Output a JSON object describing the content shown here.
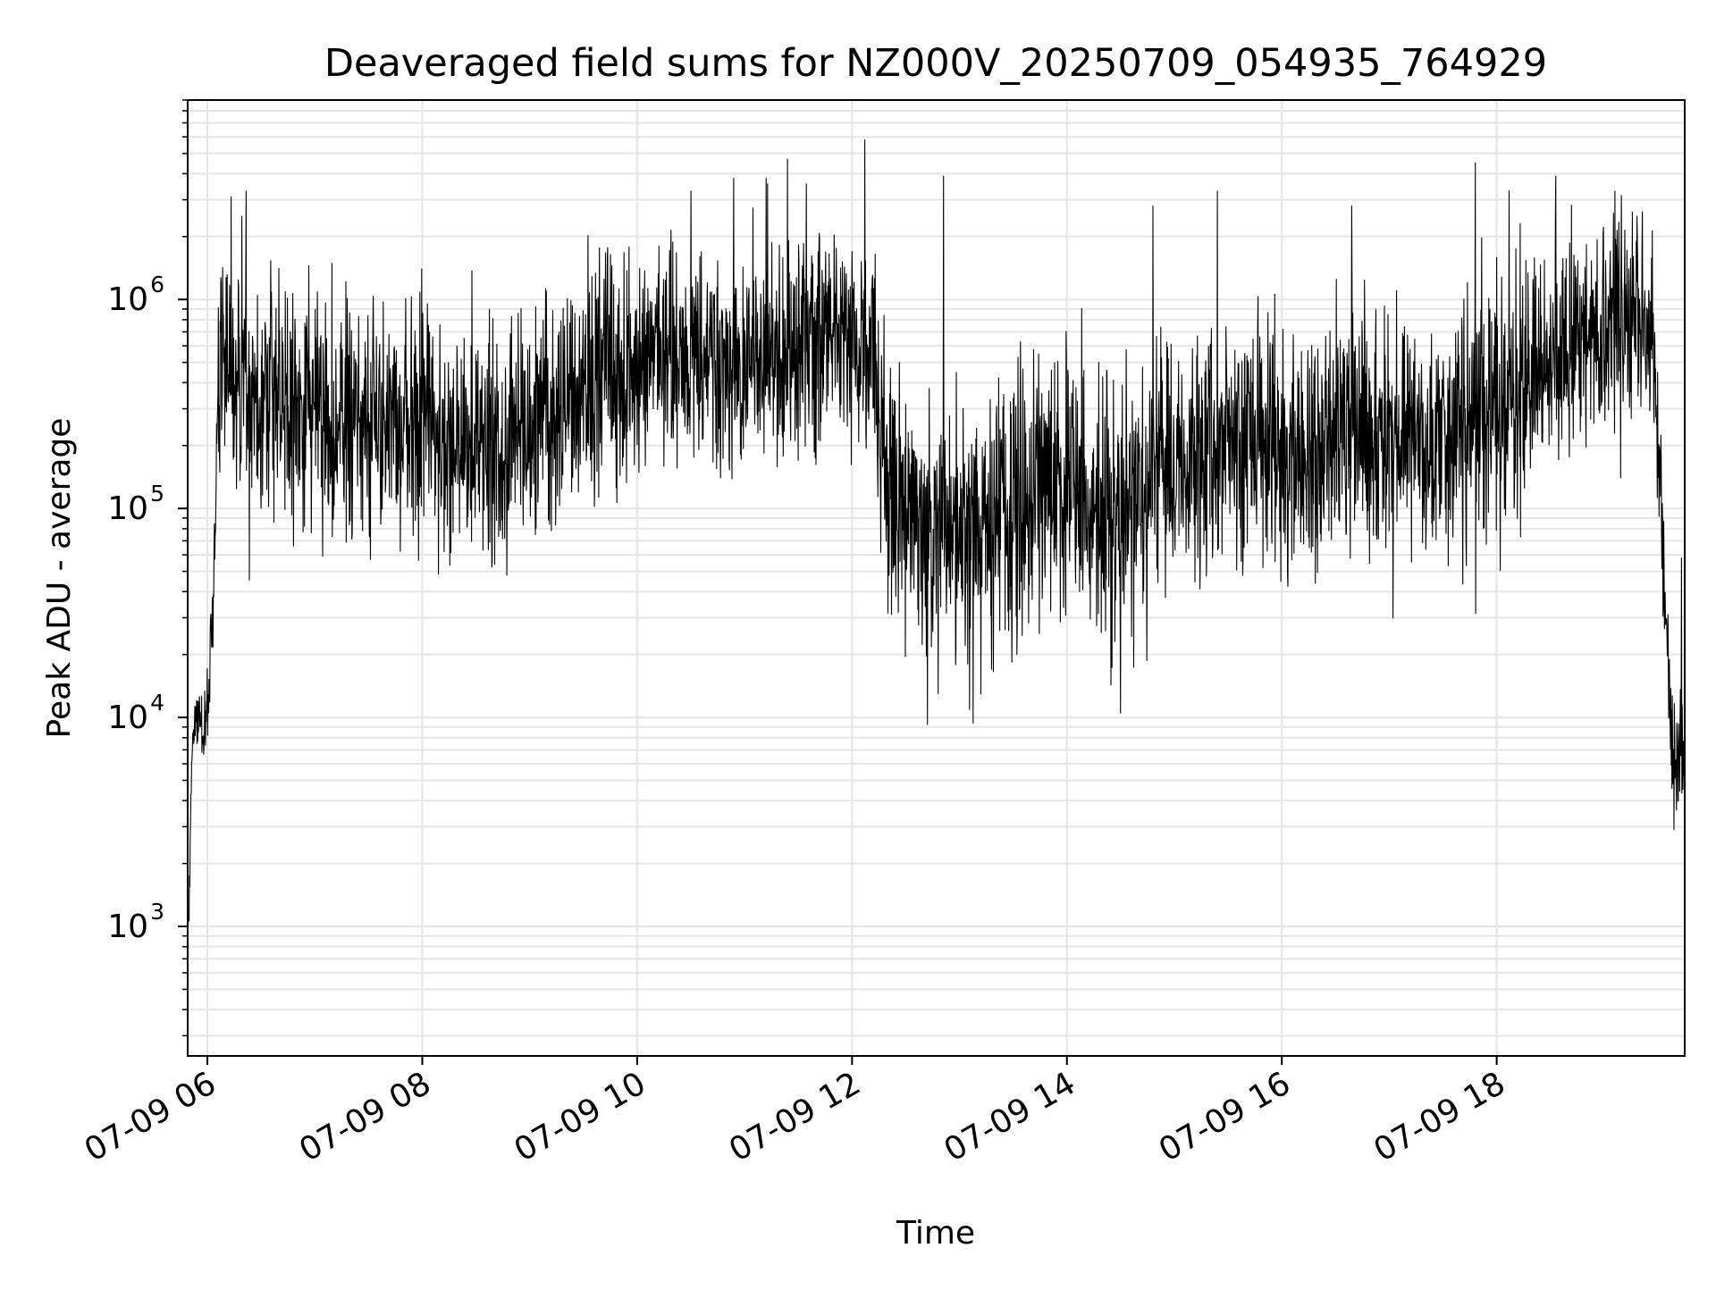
{
  "chart_data": {
    "type": "line",
    "title": "Deaveraged field sums for NZ000V_20250709_054935_764929",
    "xlabel": "Time",
    "ylabel": "Peak ADU - average",
    "y_scale": "log",
    "ylim": [
      240,
      9000000
    ],
    "xlim": [
      "07-09 05:49",
      "07-09 19:45"
    ],
    "grid": true,
    "legend": "none",
    "line_color": "#000000",
    "grid_color": "#e5e5e5",
    "x_ticks": [
      {
        "label": "07-09 06",
        "hour": 6
      },
      {
        "label": "07-09 08",
        "hour": 8
      },
      {
        "label": "07-09 10",
        "hour": 10
      },
      {
        "label": "07-09 12",
        "hour": 12
      },
      {
        "label": "07-09 14",
        "hour": 14
      },
      {
        "label": "07-09 16",
        "hour": 16
      },
      {
        "label": "07-09 18",
        "hour": 18
      }
    ],
    "y_ticks": [
      {
        "base": "10",
        "exp": "3",
        "value": 1000
      },
      {
        "base": "10",
        "exp": "4",
        "value": 10000
      },
      {
        "base": "10",
        "exp": "5",
        "value": 100000
      },
      {
        "base": "10",
        "exp": "6",
        "value": 1000000
      }
    ],
    "series": [
      {
        "x_hours": [
          5.83,
          5.84,
          5.85,
          5.86,
          5.88,
          5.9,
          5.92,
          5.94,
          5.96,
          5.98,
          6.0,
          6.02,
          6.04,
          6.06,
          6.08,
          6.1,
          6.15,
          6.2,
          6.25,
          6.3,
          6.4,
          6.5,
          6.6,
          6.7,
          6.8,
          6.9,
          7.0,
          7.2,
          7.4,
          7.6,
          7.8,
          8.0,
          8.2,
          8.4,
          8.6,
          8.8,
          9.0,
          9.2,
          9.4,
          9.6,
          9.8,
          10.0,
          10.2,
          10.4,
          10.6,
          10.8,
          11.0,
          11.2,
          11.4,
          11.6,
          11.8,
          12.0,
          12.1,
          12.2,
          12.3,
          12.35,
          12.4,
          12.45,
          12.5,
          12.6,
          12.8,
          13.0,
          13.2,
          13.4,
          13.6,
          13.8,
          14.0,
          14.2,
          14.4,
          14.6,
          14.8,
          15.0,
          15.2,
          15.4,
          15.6,
          15.8,
          16.0,
          16.2,
          16.4,
          16.6,
          16.8,
          17.0,
          17.2,
          17.4,
          17.6,
          17.8,
          18.0,
          18.2,
          18.4,
          18.6,
          18.8,
          19.0,
          19.2,
          19.3,
          19.35,
          19.4,
          19.45,
          19.5,
          19.55,
          19.6,
          19.65,
          19.7,
          19.75
        ],
        "y_center": [
          900,
          2500,
          5000,
          7000,
          8000,
          9000,
          10000,
          9000,
          7500,
          10000,
          13000,
          16000,
          25000,
          40000,
          100000,
          300000,
          600000,
          550000,
          450000,
          400000,
          350000,
          300000,
          300000,
          350000,
          320000,
          300000,
          280000,
          250000,
          260000,
          240000,
          230000,
          240000,
          210000,
          200000,
          190000,
          200000,
          230000,
          280000,
          330000,
          400000,
          440000,
          480000,
          520000,
          560000,
          500000,
          460000,
          520000,
          560000,
          600000,
          580000,
          650000,
          700000,
          650000,
          500000,
          140000,
          110000,
          90000,
          80000,
          85000,
          80000,
          75000,
          70000,
          75000,
          90000,
          110000,
          130000,
          120000,
          110000,
          100000,
          120000,
          140000,
          160000,
          180000,
          220000,
          230000,
          210000,
          200000,
          210000,
          230000,
          250000,
          260000,
          250000,
          230000,
          210000,
          230000,
          260000,
          300000,
          360000,
          450000,
          550000,
          650000,
          750000,
          850000,
          900000,
          850000,
          800000,
          600000,
          200000,
          40000,
          12000,
          7000,
          6000,
          6500
        ],
        "spread": [
          0.2,
          0.2,
          0.2,
          0.2,
          0.2,
          0.3,
          0.3,
          0.3,
          0.3,
          0.35,
          0.35,
          0.35,
          0.35,
          0.4,
          0.5,
          0.7,
          0.9,
          0.9,
          0.9,
          0.9,
          0.9,
          0.9,
          0.9,
          0.9,
          0.9,
          0.9,
          0.9,
          0.9,
          0.9,
          0.9,
          0.9,
          0.9,
          0.9,
          0.9,
          0.9,
          0.9,
          0.9,
          0.9,
          0.9,
          0.9,
          0.9,
          0.9,
          0.9,
          0.9,
          0.9,
          0.9,
          0.9,
          0.9,
          0.9,
          0.9,
          0.9,
          0.9,
          0.9,
          0.9,
          0.9,
          0.9,
          1.0,
          1.0,
          1.0,
          1.0,
          1.0,
          1.0,
          1.0,
          1.0,
          1.0,
          1.0,
          1.0,
          1.0,
          1.0,
          1.0,
          1.0,
          1.0,
          1.0,
          1.0,
          1.0,
          1.0,
          1.0,
          1.0,
          1.0,
          1.0,
          1.0,
          1.0,
          1.0,
          1.0,
          1.0,
          1.0,
          1.0,
          1.0,
          0.9,
          0.9,
          0.9,
          0.9,
          0.9,
          0.9,
          0.8,
          0.8,
          0.7,
          0.6,
          0.5,
          0.45,
          0.45,
          0.45,
          0.45
        ],
        "spikes": [
          {
            "hour": 6.22,
            "value": 3100000
          },
          {
            "hour": 6.36,
            "value": 3300000
          },
          {
            "hour": 6.32,
            "value": 2500000
          },
          {
            "hour": 10.5,
            "value": 3300000
          },
          {
            "hour": 10.9,
            "value": 3800000
          },
          {
            "hour": 11.2,
            "value": 3800000
          },
          {
            "hour": 11.4,
            "value": 4700000
          },
          {
            "hour": 12.12,
            "value": 5800000
          },
          {
            "hour": 12.85,
            "value": 3900000
          },
          {
            "hour": 14.8,
            "value": 2800000
          },
          {
            "hour": 15.4,
            "value": 3300000
          },
          {
            "hour": 16.65,
            "value": 2800000
          },
          {
            "hour": 17.8,
            "value": 4500000
          },
          {
            "hour": 18.55,
            "value": 3900000
          },
          {
            "hour": 19.1,
            "value": 3300000
          },
          {
            "hour": 12.8,
            "value": 13000
          },
          {
            "hour": 14.5,
            "value": 10500
          },
          {
            "hour": 13.3,
            "value": 17000
          },
          {
            "hour": 19.65,
            "value": 2900
          },
          {
            "hour": 19.72,
            "value": 58000
          }
        ]
      }
    ]
  }
}
